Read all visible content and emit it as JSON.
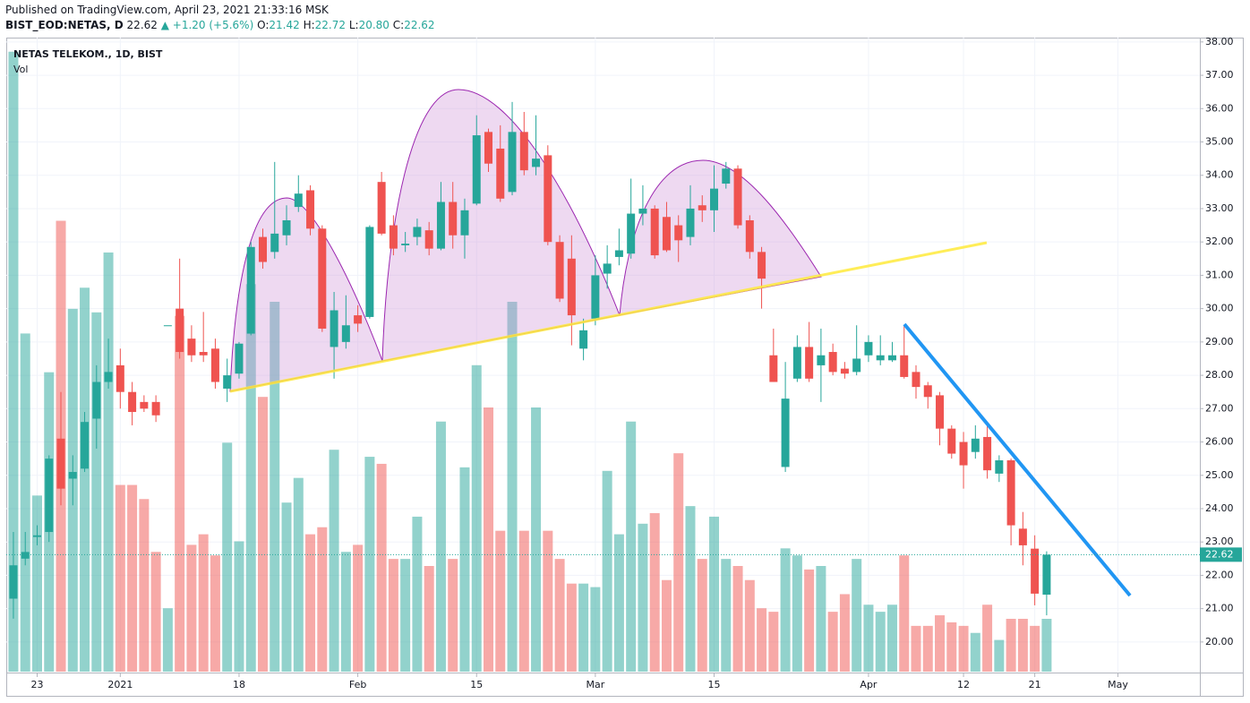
{
  "header": {
    "published": "Published on TradingView.com, April 23, 2021 21:33:16 MSK",
    "symbol": "BIST_EOD:NETAS, D",
    "last": "22.62",
    "change": "▲ +1.20 (+5.6%)",
    "ohlc": [
      {
        "label": "O:",
        "value": "21.42"
      },
      {
        "label": "H:",
        "value": "22.72"
      },
      {
        "label": "L:",
        "value": "20.80"
      },
      {
        "label": "C:",
        "value": "22.62"
      }
    ]
  },
  "chart_data": {
    "type": "candlestick",
    "title": "NETAS TELEKOM., 1D, BIST",
    "volume_label": "Vol",
    "up_color": "#26a69a",
    "down_color": "#ef5350",
    "grid": true,
    "last_price_line": true,
    "x": [
      0,
      1,
      2,
      3,
      4,
      5,
      6,
      7,
      8,
      9,
      10,
      11,
      12,
      13,
      14,
      15,
      16,
      17,
      18,
      19,
      20,
      21,
      22,
      23,
      24,
      25,
      26,
      27,
      28,
      29,
      30,
      31,
      32,
      33,
      34,
      35,
      36,
      37,
      38,
      39,
      40,
      41,
      42,
      43,
      44,
      45,
      46,
      47,
      48,
      49,
      50,
      51,
      52,
      53,
      54,
      55,
      56,
      57,
      58,
      59,
      60,
      61,
      62,
      63,
      64,
      65,
      66,
      67,
      68,
      69,
      70,
      71,
      72,
      73,
      74,
      75,
      76,
      77,
      78,
      79,
      80,
      81,
      82,
      83,
      84,
      85,
      86,
      87
    ],
    "open": [
      21.3,
      22.5,
      23.15,
      23.3,
      26.1,
      24.9,
      25.2,
      26.7,
      27.8,
      28.3,
      27.5,
      27.2,
      27.2,
      29.5,
      30.0,
      29.1,
      28.7,
      28.8,
      27.6,
      28.05,
      29.25,
      32.15,
      31.7,
      32.2,
      33.05,
      33.55,
      32.4,
      28.85,
      29.0,
      29.8,
      29.75,
      33.8,
      32.5,
      31.9,
      32.15,
      32.35,
      31.8,
      33.2,
      32.2,
      33.15,
      35.3,
      34.8,
      33.5,
      35.3,
      34.25,
      34.6,
      32.0,
      31.5,
      28.8,
      29.7,
      31.05,
      31.55,
      31.65,
      32.85,
      33.0,
      32.75,
      32.5,
      32.15,
      33.1,
      32.95,
      33.75,
      34.2,
      32.65,
      31.7,
      28.6,
      25.25,
      27.9,
      28.85,
      28.3,
      28.7,
      28.2,
      28.1,
      28.6,
      28.45,
      28.45,
      28.6,
      28.1,
      27.7,
      27.4,
      26.4,
      26.0,
      25.7,
      26.15,
      25.05,
      25.45,
      23.4,
      22.8,
      21.42
    ],
    "high": [
      23.3,
      23.3,
      23.5,
      25.6,
      27.5,
      25.6,
      26.9,
      28.3,
      29.1,
      28.8,
      27.8,
      27.4,
      27.4,
      29.5,
      31.5,
      29.5,
      29.9,
      29.1,
      28.5,
      29.0,
      32.0,
      32.4,
      34.4,
      33.1,
      34.0,
      33.7,
      32.5,
      30.5,
      30.4,
      30.1,
      32.5,
      34.1,
      32.8,
      32.3,
      32.7,
      32.6,
      33.8,
      33.8,
      33.3,
      35.8,
      35.4,
      35.5,
      36.2,
      35.9,
      35.8,
      34.9,
      32.2,
      32.2,
      29.7,
      31.6,
      31.9,
      32.4,
      33.9,
      33.7,
      33.1,
      33.2,
      32.8,
      33.7,
      33.4,
      34.3,
      34.4,
      34.3,
      32.8,
      31.85,
      29.4,
      28.4,
      29.2,
      29.6,
      29.4,
      28.95,
      28.4,
      29.5,
      29.2,
      29.2,
      29.0,
      29.5,
      28.3,
      27.8,
      27.5,
      26.5,
      26.3,
      26.5,
      26.5,
      25.6,
      25.5,
      23.9,
      23.2,
      22.72
    ],
    "low": [
      20.7,
      22.3,
      22.9,
      23.0,
      24.1,
      24.1,
      25.1,
      25.8,
      27.6,
      27.0,
      26.5,
      26.9,
      26.6,
      29.5,
      28.5,
      28.4,
      28.4,
      27.6,
      27.2,
      27.9,
      29.2,
      31.2,
      31.5,
      31.9,
      32.9,
      32.2,
      29.3,
      27.9,
      28.8,
      29.3,
      29.7,
      32.2,
      31.6,
      31.7,
      31.9,
      31.6,
      31.75,
      31.8,
      31.5,
      33.1,
      34.1,
      33.2,
      33.4,
      34.0,
      34.0,
      31.9,
      30.2,
      28.9,
      28.45,
      29.5,
      30.6,
      31.3,
      31.5,
      32.5,
      31.5,
      31.7,
      31.4,
      31.9,
      32.6,
      32.3,
      33.6,
      32.4,
      31.5,
      30.0,
      27.8,
      25.1,
      27.8,
      27.8,
      27.2,
      28.0,
      27.9,
      28.0,
      28.4,
      28.3,
      28.4,
      27.9,
      27.3,
      27.0,
      25.9,
      25.5,
      24.6,
      25.5,
      24.9,
      24.8,
      22.9,
      22.3,
      21.1,
      20.8
    ],
    "close": [
      22.3,
      22.7,
      23.2,
      25.5,
      24.6,
      25.1,
      26.6,
      27.8,
      28.1,
      27.5,
      26.9,
      27.0,
      26.8,
      29.5,
      28.7,
      28.6,
      28.6,
      27.8,
      28.0,
      28.95,
      31.85,
      31.4,
      32.25,
      32.65,
      33.45,
      32.4,
      29.4,
      29.95,
      29.5,
      29.55,
      32.45,
      32.25,
      31.8,
      31.95,
      32.45,
      31.8,
      33.2,
      32.2,
      32.95,
      35.2,
      34.35,
      33.3,
      35.3,
      34.15,
      34.5,
      32.0,
      30.3,
      29.8,
      29.35,
      31.0,
      31.35,
      31.75,
      32.85,
      33.0,
      31.6,
      31.75,
      32.05,
      33.0,
      32.95,
      33.6,
      34.2,
      32.5,
      31.7,
      30.9,
      27.8,
      27.3,
      28.85,
      27.9,
      28.6,
      28.1,
      28.05,
      28.5,
      29.0,
      28.6,
      28.6,
      27.95,
      27.65,
      27.35,
      26.4,
      25.65,
      25.3,
      26.1,
      25.15,
      25.45,
      23.5,
      22.9,
      21.45,
      22.62
    ],
    "volume": [
      176,
      96,
      50,
      85,
      128,
      103,
      109,
      102,
      119,
      53,
      53,
      49,
      34,
      18,
      101,
      36,
      39,
      33,
      65,
      37,
      110,
      78,
      105,
      48,
      55,
      39,
      41,
      63,
      34,
      36,
      61,
      59,
      32,
      32,
      44,
      30,
      71,
      32,
      58,
      87,
      75,
      40,
      105,
      40,
      75,
      40,
      32,
      25,
      25,
      24,
      57,
      39,
      71,
      42,
      45,
      26,
      62,
      47,
      32,
      44,
      32,
      30,
      26,
      18,
      17,
      35,
      33,
      29,
      30,
      17,
      22,
      32,
      19,
      17,
      19,
      33,
      13,
      13,
      16,
      14,
      13,
      11,
      19,
      9,
      15,
      15,
      13,
      15
    ],
    "vlim": [
      0,
      180
    ],
    "xlim": [
      -0.6,
      99.9
    ],
    "xticks": [
      {
        "value": 2,
        "label": "23"
      },
      {
        "value": 9,
        "label": "2021"
      },
      {
        "value": 19,
        "label": "18"
      },
      {
        "value": 29,
        "label": "Feb"
      },
      {
        "value": 39,
        "label": "15"
      },
      {
        "value": 49,
        "label": "Mar"
      },
      {
        "value": 59,
        "label": "15"
      },
      {
        "value": 72,
        "label": "Apr"
      },
      {
        "value": 80,
        "label": "12"
      },
      {
        "value": 86,
        "label": "21"
      },
      {
        "value": 93,
        "label": "May"
      }
    ],
    "ylim": [
      19.11,
      38.13
    ],
    "yticks": [
      {
        "value": 20,
        "label": "20.00"
      },
      {
        "value": 21,
        "label": "21.00"
      },
      {
        "value": 22,
        "label": "22.00"
      },
      {
        "value": 23,
        "label": "23.00"
      },
      {
        "value": 24,
        "label": "24.00"
      },
      {
        "value": 25,
        "label": "25.00"
      },
      {
        "value": 26,
        "label": "26.00"
      },
      {
        "value": 27,
        "label": "27.00"
      },
      {
        "value": 28,
        "label": "28.00"
      },
      {
        "value": 29,
        "label": "29.00"
      },
      {
        "value": 30,
        "label": "30.00"
      },
      {
        "value": 31,
        "label": "31.00"
      },
      {
        "value": 32,
        "label": "32.00"
      },
      {
        "value": 33,
        "label": "33.00"
      },
      {
        "value": 34,
        "label": "34.00"
      },
      {
        "value": 35,
        "label": "35.00"
      },
      {
        "value": 36,
        "label": "36.00"
      },
      {
        "value": 37,
        "label": "37.00"
      },
      {
        "value": 38,
        "label": "38.00"
      }
    ]
  }
}
